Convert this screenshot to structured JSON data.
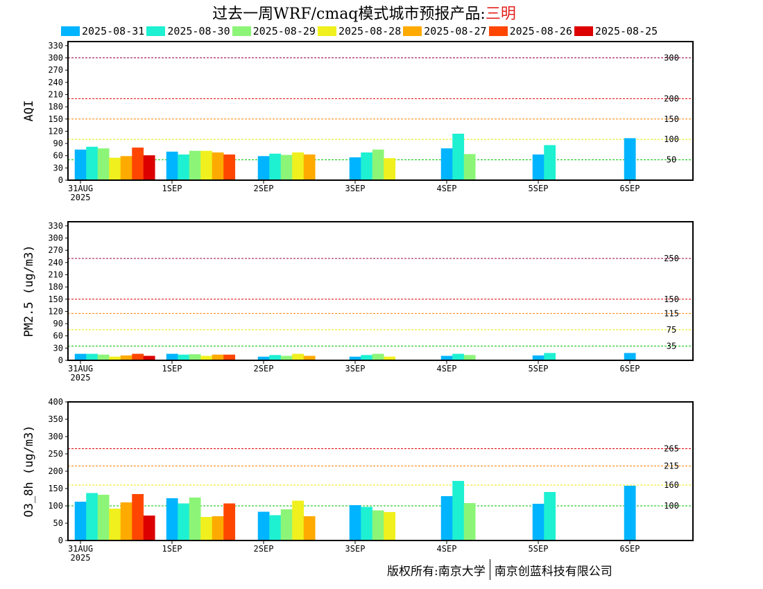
{
  "title": {
    "prefix": "过去一周WRF/cmaq模式城市预报产品:",
    "city": "三明"
  },
  "legend": [
    {
      "label": "2025-08-31",
      "color": "#00b4ff"
    },
    {
      "label": "2025-08-30",
      "color": "#1ef0d2"
    },
    {
      "label": "2025-08-29",
      "color": "#8cf578"
    },
    {
      "label": "2025-08-28",
      "color": "#f0f01e"
    },
    {
      "label": "2025-08-27",
      "color": "#ffaa00"
    },
    {
      "label": "2025-08-26",
      "color": "#ff4600"
    },
    {
      "label": "2025-08-25",
      "color": "#dc0000"
    }
  ],
  "copyright": {
    "left": "版权所有:南京大学",
    "right": "南京创蓝科技有限公司"
  },
  "chart_data": [
    {
      "type": "bar",
      "ylabel": "AQI",
      "ylim": [
        0,
        340
      ],
      "yticks": [
        0,
        30,
        60,
        90,
        120,
        150,
        180,
        210,
        240,
        270,
        300,
        330
      ],
      "categories": [
        "31AUG\n2025",
        "1SEP",
        "2SEP",
        "3SEP",
        "4SEP",
        "5SEP",
        "6SEP"
      ],
      "thresholds": [
        {
          "value": 50,
          "label": "50",
          "color": "#00c000"
        },
        {
          "value": 100,
          "label": "100",
          "color": "#e8e800"
        },
        {
          "value": 150,
          "label": "150",
          "color": "#ff8000"
        },
        {
          "value": 200,
          "label": "200",
          "color": "#dd0000"
        },
        {
          "value": 300,
          "label": "300",
          "color": "#990044"
        }
      ],
      "series": [
        {
          "name": "2025-08-31",
          "values": [
            75,
            70,
            59,
            56,
            78,
            63,
            103
          ]
        },
        {
          "name": "2025-08-30",
          "values": [
            82,
            63,
            65,
            68,
            114,
            86,
            null
          ]
        },
        {
          "name": "2025-08-29",
          "values": [
            78,
            72,
            62,
            75,
            64,
            null,
            null
          ]
        },
        {
          "name": "2025-08-28",
          "values": [
            55,
            72,
            68,
            54,
            null,
            null,
            null
          ]
        },
        {
          "name": "2025-08-27",
          "values": [
            59,
            68,
            63,
            null,
            null,
            null,
            null
          ]
        },
        {
          "name": "2025-08-26",
          "values": [
            80,
            63,
            null,
            null,
            null,
            null,
            null
          ]
        },
        {
          "name": "2025-08-25",
          "values": [
            61,
            null,
            null,
            null,
            null,
            null,
            null
          ]
        }
      ]
    },
    {
      "type": "bar",
      "ylabel": "PM2.5 (ug/m3)",
      "ylim": [
        0,
        340
      ],
      "yticks": [
        0,
        30,
        60,
        90,
        120,
        150,
        180,
        210,
        240,
        270,
        300,
        330
      ],
      "categories": [
        "31AUG\n2025",
        "1SEP",
        "2SEP",
        "3SEP",
        "4SEP",
        "5SEP",
        "6SEP"
      ],
      "thresholds": [
        {
          "value": 35,
          "label": "35",
          "color": "#00c000"
        },
        {
          "value": 75,
          "label": "75",
          "color": "#e8e800"
        },
        {
          "value": 115,
          "label": "115",
          "color": "#ff8000"
        },
        {
          "value": 150,
          "label": "150",
          "color": "#dd0000"
        },
        {
          "value": 250,
          "label": "250",
          "color": "#990044"
        }
      ],
      "series": [
        {
          "name": "2025-08-31",
          "values": [
            16,
            16,
            9,
            9,
            11,
            12,
            18
          ]
        },
        {
          "name": "2025-08-30",
          "values": [
            16,
            14,
            13,
            13,
            16,
            18,
            null
          ]
        },
        {
          "name": "2025-08-29",
          "values": [
            14,
            15,
            11,
            16,
            13,
            null,
            null
          ]
        },
        {
          "name": "2025-08-28",
          "values": [
            9,
            11,
            16,
            9,
            null,
            null,
            null
          ]
        },
        {
          "name": "2025-08-27",
          "values": [
            12,
            14,
            11,
            null,
            null,
            null,
            null
          ]
        },
        {
          "name": "2025-08-26",
          "values": [
            16,
            14,
            null,
            null,
            null,
            null,
            null
          ]
        },
        {
          "name": "2025-08-25",
          "values": [
            11,
            null,
            null,
            null,
            null,
            null,
            null
          ]
        }
      ]
    },
    {
      "type": "bar",
      "ylabel": "O3_8h (ug/m3)",
      "ylim": [
        0,
        400
      ],
      "yticks": [
        0,
        50,
        100,
        150,
        200,
        250,
        300,
        350,
        400
      ],
      "categories": [
        "31AUG\n2025",
        "1SEP",
        "2SEP",
        "3SEP",
        "4SEP",
        "5SEP",
        "6SEP"
      ],
      "thresholds": [
        {
          "value": 100,
          "label": "100",
          "color": "#00c000"
        },
        {
          "value": 160,
          "label": "160",
          "color": "#e8e800"
        },
        {
          "value": 215,
          "label": "215",
          "color": "#ff8000"
        },
        {
          "value": 265,
          "label": "265",
          "color": "#dd0000"
        }
      ],
      "series": [
        {
          "name": "2025-08-31",
          "values": [
            112,
            122,
            83,
            102,
            128,
            106,
            158
          ]
        },
        {
          "name": "2025-08-30",
          "values": [
            137,
            107,
            73,
            97,
            172,
            140,
            null
          ]
        },
        {
          "name": "2025-08-29",
          "values": [
            132,
            124,
            90,
            87,
            108,
            null,
            null
          ]
        },
        {
          "name": "2025-08-28",
          "values": [
            92,
            68,
            115,
            82,
            null,
            null,
            null
          ]
        },
        {
          "name": "2025-08-27",
          "values": [
            110,
            70,
            70,
            null,
            null,
            null,
            null
          ]
        },
        {
          "name": "2025-08-26",
          "values": [
            134,
            107,
            null,
            null,
            null,
            null,
            null
          ]
        },
        {
          "name": "2025-08-25",
          "values": [
            72,
            null,
            null,
            null,
            null,
            null,
            null
          ]
        }
      ]
    }
  ]
}
